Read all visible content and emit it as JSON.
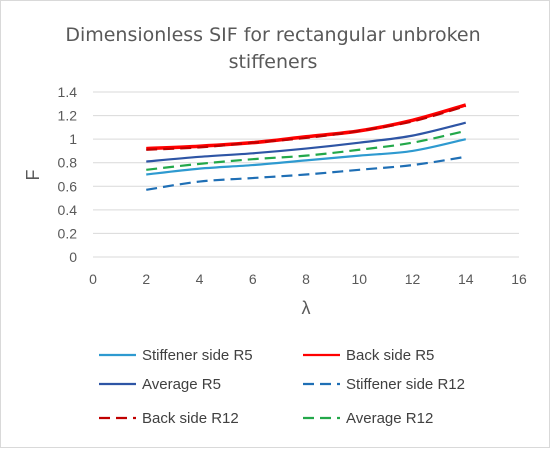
{
  "chart_data": {
    "type": "line",
    "title_line1": "Dimensionless SIF for rectangular unbroken",
    "title_line2": "stiffeners",
    "xlabel": "λ",
    "ylabel": "F",
    "xlim": [
      0,
      16
    ],
    "ylim": [
      0,
      1.4
    ],
    "xticks": [
      "0",
      "2",
      "4",
      "6",
      "8",
      "10",
      "12",
      "14",
      "16"
    ],
    "yticks": [
      "0",
      "0.2",
      "0.4",
      "0.6",
      "0.8",
      "1",
      "1.2",
      "1.4"
    ],
    "grid": true,
    "legend_position": "bottom",
    "x": [
      2,
      4,
      6,
      8,
      10,
      12,
      14
    ],
    "series": [
      {
        "name": "Stiffener side R5",
        "color": "#2e9ad0",
        "dash": "solid",
        "values": [
          0.7,
          0.75,
          0.78,
          0.82,
          0.86,
          0.9,
          1.0
        ]
      },
      {
        "name": "Back side R5",
        "color": "#ff0000",
        "dash": "solid",
        "values": [
          0.92,
          0.94,
          0.97,
          1.02,
          1.07,
          1.16,
          1.29
        ]
      },
      {
        "name": "Average R5",
        "color": "#2e55a5",
        "dash": "solid",
        "values": [
          0.81,
          0.85,
          0.88,
          0.92,
          0.97,
          1.03,
          1.14
        ]
      },
      {
        "name": "Stiffener side R12",
        "color": "#1f6fb5",
        "dash": "dashed",
        "values": [
          0.57,
          0.64,
          0.67,
          0.7,
          0.74,
          0.78,
          0.85
        ]
      },
      {
        "name": "Back side R12",
        "color": "#c00000",
        "dash": "dashed",
        "values": [
          0.91,
          0.93,
          0.97,
          1.01,
          1.07,
          1.15,
          1.28
        ]
      },
      {
        "name": "Average R12",
        "color": "#23a84a",
        "dash": "dashed",
        "values": [
          0.74,
          0.79,
          0.83,
          0.86,
          0.91,
          0.97,
          1.07
        ]
      }
    ]
  }
}
